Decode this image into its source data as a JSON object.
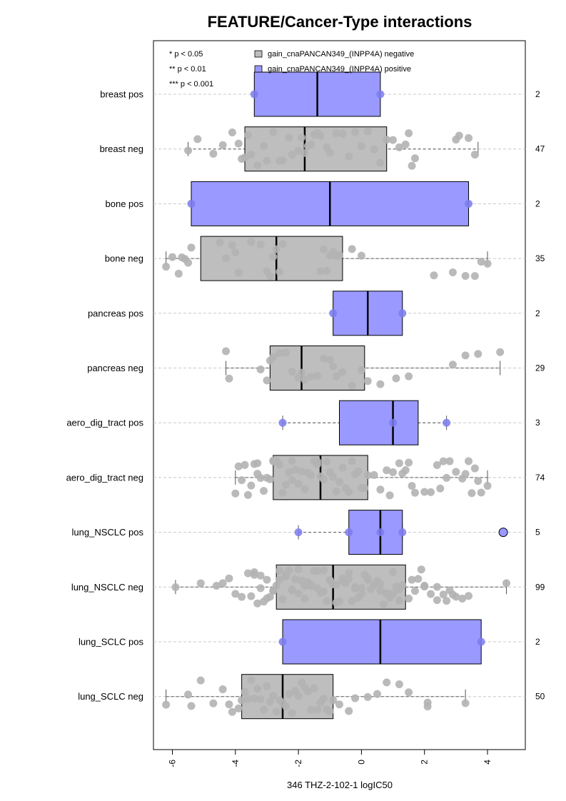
{
  "chart_data": {
    "type": "boxplot",
    "title": "FEATURE/Cancer-Type interactions",
    "xlabel": "346 THZ-2-102-1 logIC50",
    "xlim": [
      -6.6,
      5.2
    ],
    "xticks": [
      -6,
      -4,
      -2,
      0,
      2,
      4
    ],
    "grid": "horizontal dashed",
    "significance_legend": [
      "* p < 0.05",
      "** p < 0.01",
      "*** p < 0.001"
    ],
    "legend": [
      {
        "label": "gain_cnaPANCAN349_(INPP4A) negative",
        "color": "#bebebe"
      },
      {
        "label": "gain_cnaPANCAN349_(INPP4A) positive",
        "color": "#9999ff"
      }
    ],
    "colors": {
      "negative_box": "#bebebe",
      "positive_box": "#9999ff",
      "negative_point": "#b3b3b3",
      "positive_point": "#7b7bf0",
      "grid": "#c8c8c8"
    },
    "groups": [
      {
        "label": "breast pos",
        "status": "positive",
        "n": "2",
        "whisker": [
          -3.4,
          0.6
        ],
        "box": [
          -3.4,
          0.6
        ],
        "median": -1.4,
        "points": [
          -3.4,
          0.6
        ],
        "outliers": []
      },
      {
        "label": "breast neg",
        "status": "negative",
        "n": "47",
        "whisker": [
          -5.5,
          3.7
        ],
        "box": [
          -3.7,
          0.8
        ],
        "median": -1.8,
        "points": [
          -5.5,
          -5.2,
          -4.7,
          -4.4,
          -4.1,
          -3.9,
          -3.8,
          -3.7,
          -3.6,
          -3.5,
          -3.3,
          -3.1,
          -3.0,
          -2.8,
          -2.6,
          -2.5,
          -2.3,
          -2.2,
          -2.0,
          -1.9,
          -1.8,
          -1.7,
          -1.6,
          -1.5,
          -1.4,
          -1.3,
          -1.1,
          -1.0,
          -0.8,
          -0.6,
          -0.4,
          -0.2,
          0.0,
          0.2,
          0.4,
          0.6,
          0.8,
          1.0,
          1.2,
          1.4,
          1.5,
          1.6,
          1.7,
          3.0,
          3.1,
          3.4,
          3.6
        ],
        "outliers": []
      },
      {
        "label": "bone pos",
        "status": "positive",
        "n": "2",
        "whisker": [
          -5.4,
          3.4
        ],
        "box": [
          -5.4,
          3.4
        ],
        "median": -1.0,
        "points": [
          -5.4,
          3.4
        ],
        "outliers": []
      },
      {
        "label": "bone neg",
        "status": "negative",
        "n": "35",
        "whisker": [
          -6.2,
          4.0
        ],
        "box": [
          -5.1,
          -0.6
        ],
        "median": -2.7,
        "points": [
          -6.2,
          -6.0,
          -5.8,
          -5.7,
          -5.6,
          -5.5,
          -5.4,
          -4.5,
          -4.3,
          -4.1,
          -4.0,
          -3.9,
          -3.5,
          -3.2,
          -3.0,
          -2.9,
          -2.8,
          -2.7,
          -2.6,
          -2.5,
          -1.3,
          -1.2,
          -1.1,
          -1.0,
          -0.9,
          -0.8,
          -0.7,
          -0.3,
          0.0,
          2.3,
          2.9,
          3.3,
          3.6,
          3.8,
          4.0
        ],
        "outliers": []
      },
      {
        "label": "pancreas pos",
        "status": "positive",
        "n": "2",
        "whisker": [
          -0.9,
          1.3
        ],
        "box": [
          -0.9,
          1.3
        ],
        "median": 0.2,
        "points": [
          -0.9,
          1.3
        ],
        "outliers": []
      },
      {
        "label": "pancreas neg",
        "status": "negative",
        "n": "29",
        "whisker": [
          -4.3,
          4.4
        ],
        "box": [
          -2.9,
          0.1
        ],
        "median": -1.9,
        "points": [
          -4.3,
          -4.2,
          -3.2,
          -3.0,
          -2.9,
          -2.8,
          -2.6,
          -2.4,
          -2.2,
          -2.0,
          -1.9,
          -1.8,
          -1.6,
          -1.4,
          -1.2,
          -1.0,
          -0.9,
          -0.8,
          -0.6,
          -0.3,
          0.0,
          0.2,
          0.6,
          1.1,
          1.5,
          2.9,
          3.3,
          3.7,
          4.4
        ],
        "outliers": []
      },
      {
        "label": "aero_dig_tract pos",
        "status": "positive",
        "n": "3",
        "whisker": [
          -2.5,
          2.7
        ],
        "box": [
          -0.7,
          1.8
        ],
        "median": 1.0,
        "points": [
          -2.5,
          1.0,
          2.7
        ],
        "outliers": []
      },
      {
        "label": "aero_dig_tract neg",
        "status": "negative",
        "n": "74",
        "whisker": [
          -4.0,
          4.0
        ],
        "box": [
          -2.8,
          0.2
        ],
        "median": -1.3,
        "points": [
          -4.0,
          -3.9,
          -3.8,
          -3.7,
          -3.6,
          -3.5,
          -3.4,
          -3.3,
          -3.3,
          -3.2,
          -3.1,
          -3.0,
          -2.9,
          -2.8,
          -2.8,
          -2.7,
          -2.6,
          -2.5,
          -2.4,
          -2.3,
          -2.2,
          -2.2,
          -2.1,
          -2.0,
          -1.9,
          -1.8,
          -1.7,
          -1.6,
          -1.5,
          -1.4,
          -1.4,
          -1.3,
          -1.2,
          -1.1,
          -1.0,
          -0.9,
          -0.8,
          -0.7,
          -0.6,
          -0.5,
          -0.4,
          -0.3,
          -0.2,
          -0.1,
          0.0,
          0.1,
          0.2,
          0.4,
          0.6,
          0.8,
          0.9,
          1.0,
          1.2,
          1.3,
          1.4,
          1.5,
          1.6,
          1.7,
          2.0,
          2.2,
          2.4,
          2.5,
          2.6,
          2.7,
          2.8,
          3.0,
          3.2,
          3.3,
          3.4,
          3.5,
          3.6,
          3.7,
          3.8,
          4.0
        ],
        "outliers": []
      },
      {
        "label": "lung_NSCLC pos",
        "status": "positive",
        "n": "5",
        "whisker": [
          -2.0,
          1.3
        ],
        "box": [
          -0.4,
          1.3
        ],
        "median": 0.6,
        "points": [
          -2.0,
          -0.4,
          0.6,
          1.3
        ],
        "outliers": [
          4.5
        ]
      },
      {
        "label": "lung_NSCLC neg",
        "status": "negative",
        "n": "99",
        "whisker": [
          -5.9,
          4.6
        ],
        "box": [
          -2.7,
          1.4
        ],
        "median": -0.9,
        "points": [
          -5.9,
          -5.1,
          -4.6,
          -4.4,
          -4.2,
          -4.0,
          -3.8,
          -3.6,
          -3.5,
          -3.4,
          -3.3,
          -3.2,
          -3.1,
          -3.0,
          -2.9,
          -2.8,
          -2.7,
          -2.6,
          -2.5,
          -2.4,
          -2.3,
          -2.2,
          -2.1,
          -2.0,
          -1.9,
          -1.8,
          -1.7,
          -1.6,
          -1.5,
          -1.4,
          -1.3,
          -1.2,
          -1.1,
          -1.0,
          -0.9,
          -0.8,
          -0.7,
          -0.6,
          -0.5,
          -0.4,
          -0.3,
          -0.2,
          -0.1,
          0.0,
          0.1,
          0.2,
          0.3,
          0.4,
          0.5,
          0.6,
          0.7,
          0.8,
          0.9,
          1.0,
          1.1,
          1.2,
          1.3,
          1.5,
          1.7,
          1.8,
          1.9,
          2.0,
          2.2,
          2.4,
          2.6,
          2.7,
          2.9,
          3.0,
          3.2,
          3.4,
          4.6,
          -3.4,
          -3.0,
          -2.6,
          -2.2,
          -1.8,
          -1.4,
          -1.0,
          -0.6,
          -0.2,
          0.2,
          0.6,
          1.0,
          -3.2,
          -2.8,
          -2.4,
          -2.0,
          -1.6,
          -1.2,
          -0.8,
          -0.4,
          0.0,
          0.4,
          0.8,
          1.2,
          1.6,
          2.0,
          2.4,
          2.8
        ],
        "outliers": []
      },
      {
        "label": "lung_SCLC pos",
        "status": "positive",
        "n": "2",
        "whisker": [
          -2.5,
          3.8
        ],
        "box": [
          -2.5,
          3.8
        ],
        "median": 0.6,
        "points": [
          -2.5,
          3.8
        ],
        "outliers": []
      },
      {
        "label": "lung_SCLC neg",
        "status": "negative",
        "n": "50",
        "whisker": [
          -6.2,
          3.3
        ],
        "box": [
          -3.8,
          -0.9
        ],
        "median": -2.5,
        "points": [
          -6.2,
          -5.5,
          -5.4,
          -5.1,
          -4.7,
          -4.4,
          -4.2,
          -4.1,
          -3.9,
          -3.8,
          -3.7,
          -3.6,
          -3.5,
          -3.4,
          -3.3,
          -3.2,
          -3.1,
          -3.0,
          -2.9,
          -2.8,
          -2.7,
          -2.6,
          -2.5,
          -2.4,
          -2.3,
          -2.2,
          -2.1,
          -2.0,
          -1.9,
          -1.8,
          -1.7,
          -1.6,
          -1.5,
          -1.4,
          -1.3,
          -1.2,
          -1.1,
          -1.0,
          -0.9,
          -0.7,
          -0.4,
          -0.2,
          0.2,
          0.5,
          0.8,
          1.2,
          1.5,
          2.1,
          2.1,
          3.3
        ],
        "outliers": []
      }
    ]
  }
}
